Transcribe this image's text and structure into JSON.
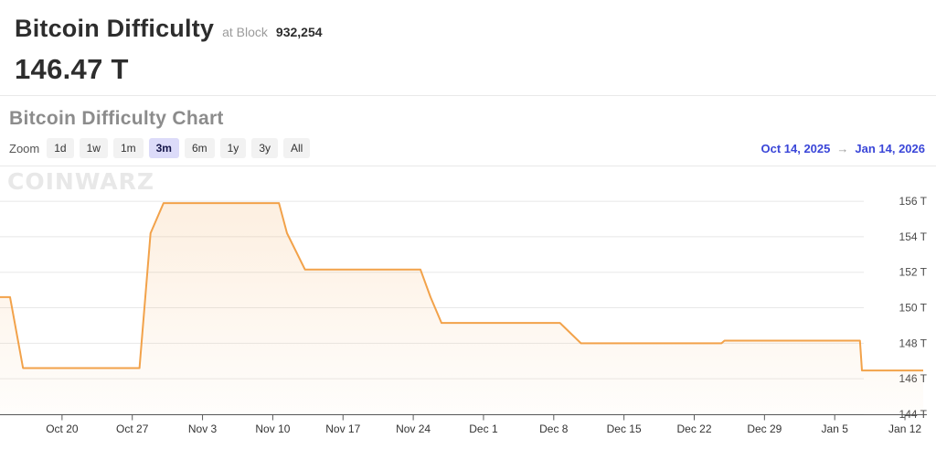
{
  "header": {
    "title": "Bitcoin Difficulty",
    "at_block_label": "at Block",
    "block_number": "932,254",
    "current_value": "146.47 T"
  },
  "section": {
    "title": "Bitcoin Difficulty Chart"
  },
  "toolbar": {
    "zoom_label": "Zoom",
    "ranges": [
      "1d",
      "1w",
      "1m",
      "3m",
      "6m",
      "1y",
      "3y",
      "All"
    ],
    "selected_range": "3m",
    "date_from": "Oct 14, 2025",
    "date_to": "Jan 14, 2026",
    "arrow": "→"
  },
  "watermark": "COINWARZ",
  "colors": {
    "accent_blue": "#3a46d8",
    "selected_range_bg": "#dcdbf9",
    "line_orange": "#f2a24a"
  },
  "chart_data": {
    "type": "area",
    "title": "Bitcoin Difficulty Chart",
    "series_name": "Bitcoin Difficulty",
    "unit": "T",
    "x_start": "Oct 14, 2025",
    "x_end": "Jan 14, 2026",
    "x_span_days": 92,
    "ylim": [
      144,
      157.5
    ],
    "grid": true,
    "legend": "none",
    "y_axis_side": "right",
    "y_ticks": [
      {
        "value": 156,
        "label": "156 T"
      },
      {
        "value": 154,
        "label": "154 T"
      },
      {
        "value": 152,
        "label": "152 T"
      },
      {
        "value": 150,
        "label": "150 T"
      },
      {
        "value": 148,
        "label": "148 T"
      },
      {
        "value": 146,
        "label": "146 T"
      },
      {
        "value": 144,
        "label": "144 T"
      }
    ],
    "x_ticks": [
      {
        "day": 6,
        "label": "Oct 20"
      },
      {
        "day": 13,
        "label": "Oct 27"
      },
      {
        "day": 20,
        "label": "Nov 3"
      },
      {
        "day": 27,
        "label": "Nov 10"
      },
      {
        "day": 34,
        "label": "Nov 17"
      },
      {
        "day": 41,
        "label": "Nov 24"
      },
      {
        "day": 48,
        "label": "Dec 1"
      },
      {
        "day": 55,
        "label": "Dec 8"
      },
      {
        "day": 62,
        "label": "Dec 15"
      },
      {
        "day": 69,
        "label": "Dec 22"
      },
      {
        "day": 76,
        "label": "Dec 29"
      },
      {
        "day": 83,
        "label": "Jan 5"
      },
      {
        "day": 90,
        "label": "Jan 12"
      }
    ],
    "points_day_value": [
      [
        0,
        150.6
      ],
      [
        1,
        150.6
      ],
      [
        2.3,
        146.6
      ],
      [
        13.9,
        146.6
      ],
      [
        15,
        154.2
      ],
      [
        16.3,
        155.9
      ],
      [
        27.8,
        155.9
      ],
      [
        28.6,
        154.2
      ],
      [
        30.4,
        152.15
      ],
      [
        41.9,
        152.15
      ],
      [
        42.9,
        150.6
      ],
      [
        44,
        149.15
      ],
      [
        55.8,
        149.15
      ],
      [
        57.9,
        148.0
      ],
      [
        71.9,
        148.0
      ],
      [
        72.2,
        148.15
      ],
      [
        85.7,
        148.15
      ],
      [
        85.9,
        146.47
      ],
      [
        92,
        146.47
      ]
    ],
    "line_color": "#f2a24a",
    "fill_top": "rgba(242,162,74,0.17)",
    "fill_bottom": "rgba(242,162,74,0.02)",
    "grid_color": "#e8e8e8",
    "axis_color": "#5a5a5a",
    "x_label_color": "#333333",
    "y_label_color": "#4a4a4a"
  }
}
